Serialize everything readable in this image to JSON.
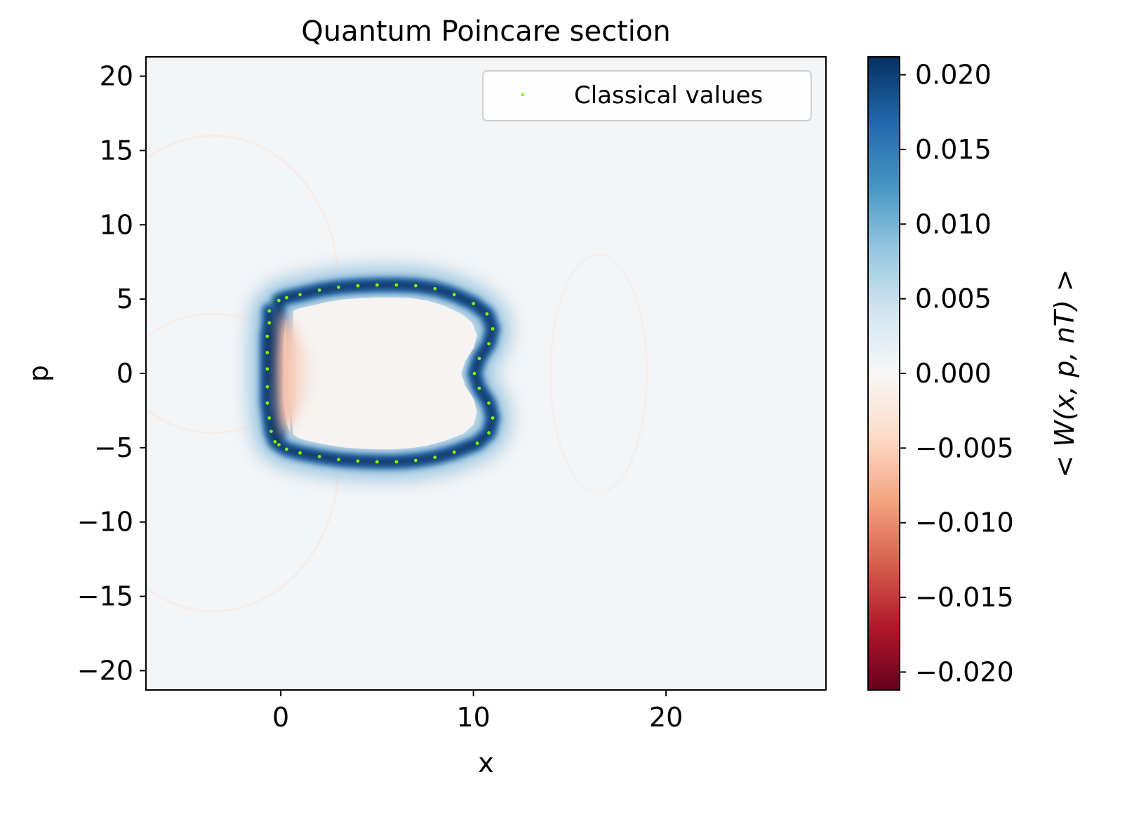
{
  "chart_data": {
    "type": "heatmap",
    "title": "Quantum Poincare section",
    "xlabel": "x",
    "ylabel": "p",
    "colorbar_label": "< W(x, p, nT) >",
    "xlim": [
      -7,
      28.3
    ],
    "ylim": [
      -21.3,
      21.3
    ],
    "x_ticks": [
      0,
      10,
      20
    ],
    "x_tick_labels": [
      "0",
      "10",
      "20"
    ],
    "y_ticks": [
      20,
      15,
      10,
      5,
      0,
      -5,
      -10,
      -15,
      -20
    ],
    "y_tick_labels": [
      "20",
      "15",
      "10",
      "5",
      "0",
      "−5",
      "−10",
      "−15",
      "−20"
    ],
    "colorbar_range": [
      -0.0212,
      0.0212
    ],
    "colorbar_ticks": [
      0.02,
      0.015,
      0.01,
      0.005,
      0.0,
      -0.005,
      -0.01,
      -0.015,
      -0.02
    ],
    "colorbar_tick_labels": [
      "0.020",
      "0.015",
      "0.010",
      "0.005",
      "0.000",
      "−0.005",
      "−0.010",
      "−0.015",
      "−0.020"
    ],
    "colormap": "RdBu",
    "colormap_stops": [
      "#67001f",
      "#b2182b",
      "#d6604d",
      "#f4a582",
      "#fddbc7",
      "#f7f7f7",
      "#d1e5f0",
      "#92c5de",
      "#4393c3",
      "#2166ac",
      "#053061"
    ],
    "grid": false,
    "legend_position": "top-right",
    "series": [
      {
        "name": "Classical values",
        "type": "scatter",
        "color": "#7cfc00",
        "points": [
          [
            -0.6,
            4.2
          ],
          [
            -0.6,
            3.4
          ],
          [
            -0.7,
            2.5
          ],
          [
            -0.7,
            1.4
          ],
          [
            -0.7,
            0.3
          ],
          [
            -0.7,
            -0.9
          ],
          [
            -0.7,
            -2.0
          ],
          [
            -0.6,
            -3.0
          ],
          [
            -0.5,
            -3.9
          ],
          [
            -0.3,
            -4.6
          ],
          [
            -0.1,
            4.9
          ],
          [
            0.3,
            5.1
          ],
          [
            1.0,
            5.3
          ],
          [
            2.0,
            5.6
          ],
          [
            3.0,
            5.8
          ],
          [
            4.0,
            5.9
          ],
          [
            5.0,
            5.95
          ],
          [
            6.0,
            5.95
          ],
          [
            7.0,
            5.9
          ],
          [
            8.0,
            5.7
          ],
          [
            9.0,
            5.3
          ],
          [
            10.0,
            4.7
          ],
          [
            10.7,
            4.0
          ],
          [
            11.0,
            3.0
          ],
          [
            10.8,
            2.0
          ],
          [
            10.3,
            1.0
          ],
          [
            10.05,
            0.0
          ],
          [
            10.3,
            -1.0
          ],
          [
            10.8,
            -2.0
          ],
          [
            11.0,
            -3.0
          ],
          [
            10.8,
            -4.0
          ],
          [
            10.2,
            -4.7
          ],
          [
            9.0,
            -5.3
          ],
          [
            8.0,
            -5.65
          ],
          [
            7.0,
            -5.85
          ],
          [
            6.0,
            -5.95
          ],
          [
            5.0,
            -5.95
          ],
          [
            4.0,
            -5.9
          ],
          [
            3.0,
            -5.8
          ],
          [
            2.0,
            -5.6
          ],
          [
            1.0,
            -5.35
          ],
          [
            0.3,
            -5.1
          ],
          [
            -0.1,
            -4.8
          ]
        ]
      }
    ]
  }
}
